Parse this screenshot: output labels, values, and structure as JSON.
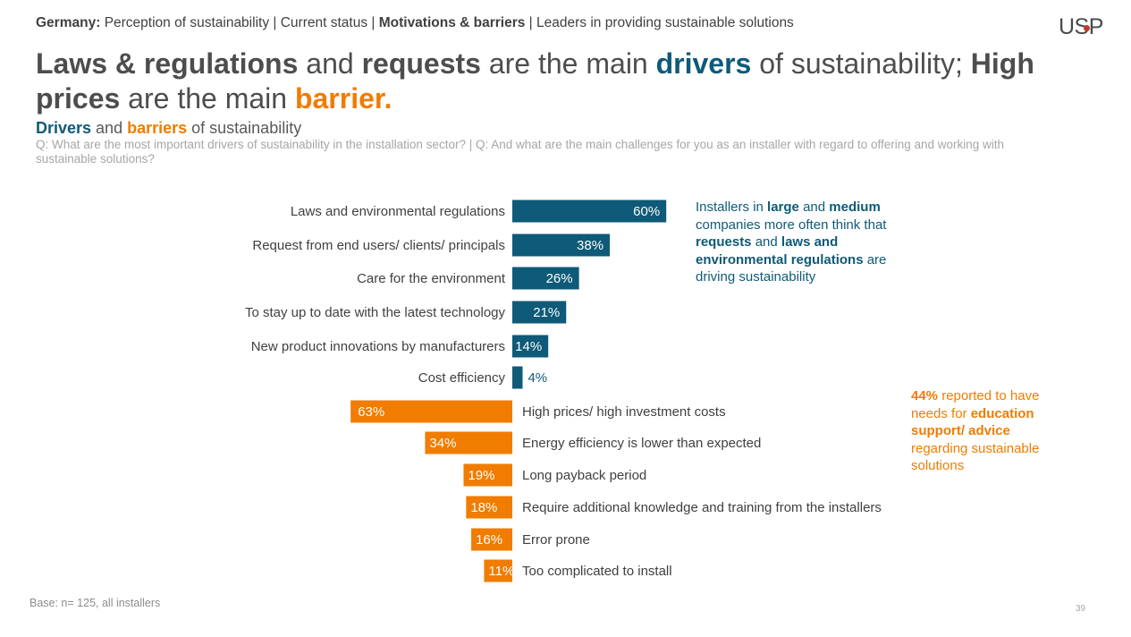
{
  "nav": {
    "country": "Germany:",
    "items": [
      {
        "label": "Perception of sustainability",
        "active": false
      },
      {
        "label": "Current status",
        "active": false
      },
      {
        "label": "Motivations & barriers",
        "active": true
      },
      {
        "label": "Leaders in providing sustainable solutions",
        "active": false
      }
    ],
    "separator": " | "
  },
  "logo": {
    "text": "USP",
    "dot_color": "#c0392b"
  },
  "headline": {
    "p1": "Laws & regulations",
    "p2": " and ",
    "p3": "requests",
    "p4": " are the main ",
    "p5": "drivers",
    "p6": " of sustainability; ",
    "p7": "High prices",
    "p8": " are the main ",
    "p9": "barrier."
  },
  "subtitle": {
    "drivers": "Drivers",
    "and": " and ",
    "barriers": "barriers",
    "rest": " of sustainability"
  },
  "question": "Q: What are the most important drivers of sustainability in the installation sector? | Q: And what are the main challenges for you as an installer with regard to offering and working with sustainable solutions?",
  "colors": {
    "driver": "#0e5a78",
    "barrier": "#f07c00",
    "dark_text": "#404040"
  },
  "chart_data": {
    "type": "bar",
    "orientation": "horizontal diverging",
    "unit": "%",
    "series": [
      {
        "name": "Drivers",
        "categories": [
          "Laws and environmental regulations",
          "Request from end users/ clients/ principals",
          "Care for the environment",
          "To stay up to date with the latest technology",
          "New product innovations by manufacturers",
          "Cost efficiency"
        ],
        "values": [
          60,
          38,
          26,
          21,
          14,
          4
        ],
        "labels": [
          "60%",
          "38%",
          "26%",
          "21%",
          "14%",
          "4%"
        ]
      },
      {
        "name": "Barriers",
        "categories": [
          "High prices/ high investment costs",
          "Energy efficiency is lower than expected",
          "Long payback period",
          "Require additional knowledge and training from the installers",
          "Error prone",
          "Too complicated to install"
        ],
        "values": [
          63,
          34,
          19,
          18,
          16,
          11
        ],
        "labels": [
          "63%",
          "34%",
          "19%",
          "18%",
          "16%",
          "11%"
        ]
      }
    ]
  },
  "notes": {
    "drivers": {
      "t1": "Installers in ",
      "t2": "large",
      "t3": " and ",
      "t4": "medium",
      "t5": " companies more often think that ",
      "t6": "requests",
      "t7": " and ",
      "t8": "laws and environmental regulations",
      "t9": " are driving sustainability"
    },
    "barriers": {
      "t1": "44%",
      "t2": " reported to have needs for ",
      "t3": "education support/ advice",
      "t4": " regarding sustainable solutions"
    }
  },
  "footer": {
    "base": "Base: n= 125, all installers",
    "page": "39"
  }
}
